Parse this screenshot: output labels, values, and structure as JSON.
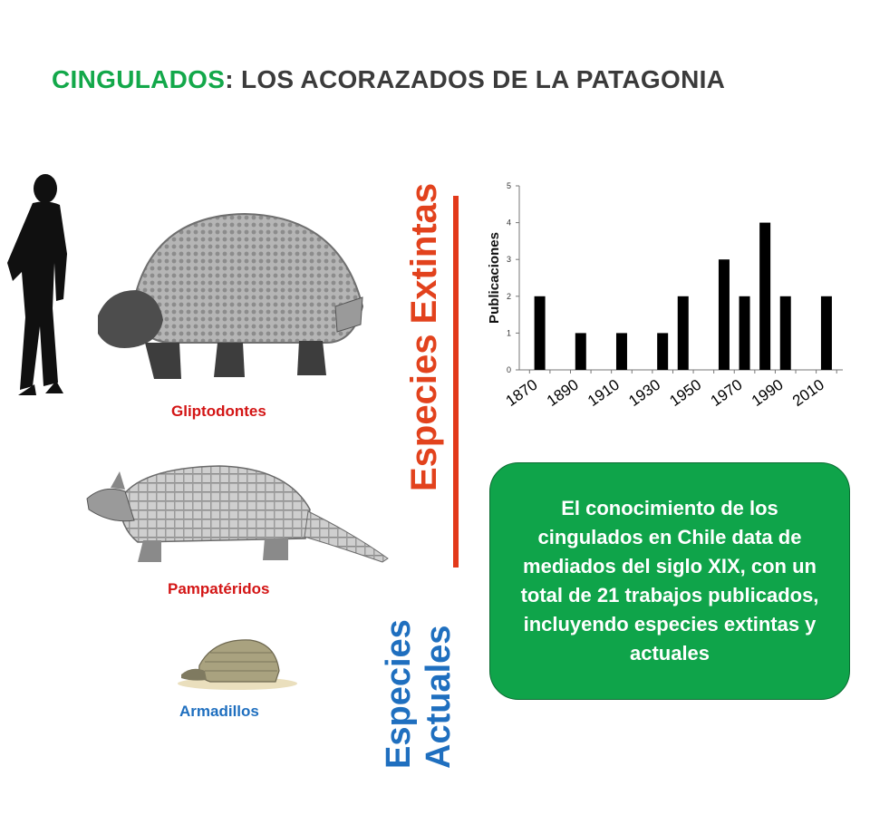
{
  "title": {
    "part1": "CINGULADOS",
    "part2": ": LOS ACORAZADOS DE LA PATAGONIA"
  },
  "labels": {
    "glipto": "Gliptodontes",
    "pampa": "Pampatéridos",
    "armad": "Armadillos"
  },
  "vertical": {
    "extintas": "Especies Extintas",
    "actuales_1": "Especies",
    "actuales_2": "Actuales"
  },
  "callout": "El conocimiento de los cingulados en Chile data de mediados del siglo XIX, con un total de 21 trabajos publicados, incluyendo especies extintas y actuales",
  "colors": {
    "green": "#13a84a",
    "red": "#d31515",
    "orange_red": "#e2421d",
    "blue": "#1f6fbf"
  },
  "chart_data": {
    "type": "bar",
    "ylabel": "Publicaciones",
    "xlabel": "",
    "ylim": [
      0,
      5
    ],
    "yticks": [
      0,
      1,
      2,
      3,
      4,
      5
    ],
    "xlim": [
      1865,
      2023
    ],
    "xticks": [
      1870,
      1890,
      1910,
      1930,
      1950,
      1970,
      1990,
      2010
    ],
    "x": [
      1875,
      1895,
      1915,
      1935,
      1945,
      1965,
      1975,
      1985,
      1995,
      2015
    ],
    "values": [
      2,
      1,
      1,
      1,
      2,
      3,
      2,
      4,
      2,
      2
    ]
  }
}
